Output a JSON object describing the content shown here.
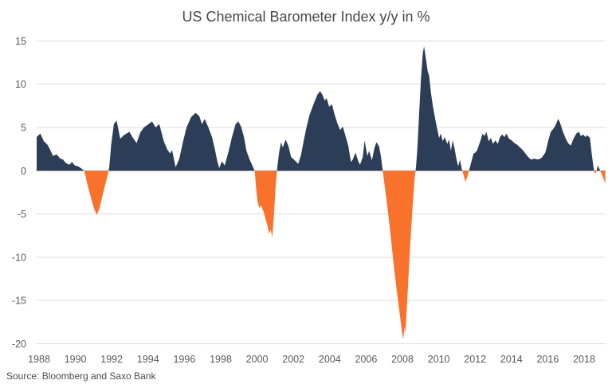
{
  "chart_data": {
    "type": "area",
    "title": "US Chemical Barometer Index y/y in %",
    "source": "Source: Bloomberg and Saxo Bank",
    "series_name": "US Chemical Barometer Index y/y %",
    "legend": "none",
    "grid": true,
    "x_axis": {
      "ticks": [
        1988,
        1990,
        1992,
        1994,
        1996,
        1998,
        2000,
        2002,
        2004,
        2006,
        2008,
        2010,
        2012,
        2014,
        2016,
        2018
      ],
      "range": [
        1988,
        2019.3
      ]
    },
    "y_axis": {
      "ticks": [
        15,
        10,
        5,
        0,
        -5,
        -10,
        -15,
        -20
      ],
      "range": [
        -20,
        15
      ],
      "unit": "%"
    },
    "colors": {
      "positive_area": "#2b3d57",
      "negative_area": "#f9722b",
      "gridline": "#dcdcdc",
      "zero_line": "#b3b3b3",
      "axis_text": "#595959",
      "title_text": "#474747"
    },
    "points": [
      [
        1988.0,
        3.9
      ],
      [
        1988.2,
        4.3
      ],
      [
        1988.4,
        3.4
      ],
      [
        1988.6,
        3.0
      ],
      [
        1988.75,
        2.4
      ],
      [
        1988.9,
        1.7
      ],
      [
        1989.1,
        1.9
      ],
      [
        1989.3,
        1.4
      ],
      [
        1989.45,
        1.3
      ],
      [
        1989.6,
        0.9
      ],
      [
        1989.8,
        0.7
      ],
      [
        1989.95,
        1.0
      ],
      [
        1990.1,
        0.6
      ],
      [
        1990.3,
        0.5
      ],
      [
        1990.5,
        0.2
      ],
      [
        1990.62,
        0.0
      ],
      [
        1990.8,
        -1.6
      ],
      [
        1991.0,
        -3.2
      ],
      [
        1991.15,
        -4.3
      ],
      [
        1991.3,
        -5.1
      ],
      [
        1991.45,
        -4.4
      ],
      [
        1991.6,
        -3.1
      ],
      [
        1991.75,
        -1.8
      ],
      [
        1991.9,
        -0.6
      ],
      [
        1992.0,
        0.5
      ],
      [
        1992.1,
        3.0
      ],
      [
        1992.25,
        5.4
      ],
      [
        1992.4,
        5.8
      ],
      [
        1992.6,
        3.7
      ],
      [
        1992.8,
        4.1
      ],
      [
        1993.1,
        4.5
      ],
      [
        1993.3,
        3.8
      ],
      [
        1993.5,
        3.2
      ],
      [
        1993.7,
        4.4
      ],
      [
        1993.9,
        5.0
      ],
      [
        1994.1,
        5.3
      ],
      [
        1994.35,
        5.7
      ],
      [
        1994.55,
        5.0
      ],
      [
        1994.75,
        5.4
      ],
      [
        1995.0,
        3.4
      ],
      [
        1995.2,
        2.4
      ],
      [
        1995.35,
        2.0
      ],
      [
        1995.45,
        2.4
      ],
      [
        1995.65,
        0.4
      ],
      [
        1995.85,
        1.4
      ],
      [
        1996.05,
        3.3
      ],
      [
        1996.25,
        5.0
      ],
      [
        1996.5,
        6.2
      ],
      [
        1996.75,
        6.7
      ],
      [
        1996.95,
        6.3
      ],
      [
        1997.1,
        5.4
      ],
      [
        1997.25,
        6.0
      ],
      [
        1997.45,
        5.0
      ],
      [
        1997.65,
        3.9
      ],
      [
        1997.8,
        2.6
      ],
      [
        1997.95,
        1.0
      ],
      [
        1998.05,
        0.3
      ],
      [
        1998.2,
        1.1
      ],
      [
        1998.35,
        0.6
      ],
      [
        1998.55,
        2.1
      ],
      [
        1998.75,
        3.9
      ],
      [
        1998.95,
        5.4
      ],
      [
        1999.1,
        5.7
      ],
      [
        1999.25,
        5.1
      ],
      [
        1999.4,
        4.0
      ],
      [
        1999.55,
        2.3
      ],
      [
        1999.7,
        1.4
      ],
      [
        1999.85,
        0.7
      ],
      [
        2000.0,
        0.0
      ],
      [
        2000.08,
        -2.0
      ],
      [
        2000.15,
        -3.4
      ],
      [
        2000.25,
        -4.3
      ],
      [
        2000.35,
        -4.0
      ],
      [
        2000.5,
        -4.8
      ],
      [
        2000.6,
        -5.6
      ],
      [
        2000.7,
        -6.3
      ],
      [
        2000.8,
        -7.3
      ],
      [
        2000.88,
        -6.8
      ],
      [
        2000.97,
        -7.7
      ],
      [
        2001.05,
        -5.5
      ],
      [
        2001.15,
        -2.0
      ],
      [
        2001.25,
        0.5
      ],
      [
        2001.35,
        2.2
      ],
      [
        2001.45,
        3.3
      ],
      [
        2001.55,
        2.7
      ],
      [
        2001.7,
        3.6
      ],
      [
        2001.85,
        2.9
      ],
      [
        2002.0,
        1.6
      ],
      [
        2002.2,
        1.2
      ],
      [
        2002.4,
        0.8
      ],
      [
        2002.55,
        1.8
      ],
      [
        2002.7,
        3.5
      ],
      [
        2002.85,
        5.0
      ],
      [
        2003.0,
        6.3
      ],
      [
        2003.15,
        7.2
      ],
      [
        2003.3,
        8.0
      ],
      [
        2003.45,
        8.8
      ],
      [
        2003.6,
        9.2
      ],
      [
        2003.75,
        8.7
      ],
      [
        2003.85,
        8.1
      ],
      [
        2003.95,
        8.4
      ],
      [
        2004.1,
        7.4
      ],
      [
        2004.25,
        7.7
      ],
      [
        2004.4,
        6.5
      ],
      [
        2004.55,
        5.5
      ],
      [
        2004.7,
        4.7
      ],
      [
        2004.85,
        5.1
      ],
      [
        2005.0,
        4.0
      ],
      [
        2005.15,
        2.9
      ],
      [
        2005.3,
        1.0
      ],
      [
        2005.4,
        1.3
      ],
      [
        2005.55,
        2.1
      ],
      [
        2005.7,
        1.1
      ],
      [
        2005.8,
        0.7
      ],
      [
        2005.95,
        1.6
      ],
      [
        2006.05,
        3.5
      ],
      [
        2006.2,
        1.7
      ],
      [
        2006.3,
        2.3
      ],
      [
        2006.45,
        1.2
      ],
      [
        2006.6,
        2.7
      ],
      [
        2006.7,
        3.3
      ],
      [
        2006.85,
        2.8
      ],
      [
        2006.95,
        1.6
      ],
      [
        2007.05,
        0.0
      ],
      [
        2007.2,
        -2.5
      ],
      [
        2007.35,
        -5.0
      ],
      [
        2007.5,
        -7.8
      ],
      [
        2007.65,
        -10.8
      ],
      [
        2007.8,
        -13.5
      ],
      [
        2007.95,
        -16.0
      ],
      [
        2008.1,
        -18.5
      ],
      [
        2008.18,
        -19.5
      ],
      [
        2008.25,
        -18.0
      ],
      [
        2008.3,
        -18.8
      ],
      [
        2008.42,
        -14.0
      ],
      [
        2008.55,
        -9.0
      ],
      [
        2008.68,
        -4.5
      ],
      [
        2008.8,
        -1.0
      ],
      [
        2008.88,
        0.5
      ],
      [
        2008.95,
        2.5
      ],
      [
        2009.05,
        6.5
      ],
      [
        2009.15,
        10.5
      ],
      [
        2009.25,
        13.5
      ],
      [
        2009.32,
        14.4
      ],
      [
        2009.42,
        13.0
      ],
      [
        2009.52,
        11.5
      ],
      [
        2009.6,
        11.0
      ],
      [
        2009.7,
        9.0
      ],
      [
        2009.82,
        7.3
      ],
      [
        2009.95,
        5.8
      ],
      [
        2010.05,
        4.8
      ],
      [
        2010.15,
        3.8
      ],
      [
        2010.25,
        4.3
      ],
      [
        2010.35,
        3.4
      ],
      [
        2010.45,
        3.9
      ],
      [
        2010.6,
        3.1
      ],
      [
        2010.7,
        3.6
      ],
      [
        2010.8,
        2.3
      ],
      [
        2010.9,
        3.5
      ],
      [
        2011.0,
        2.6
      ],
      [
        2011.1,
        1.4
      ],
      [
        2011.2,
        0.5
      ],
      [
        2011.3,
        1.3
      ],
      [
        2011.4,
        0.2
      ],
      [
        2011.5,
        -0.5
      ],
      [
        2011.6,
        -1.3
      ],
      [
        2011.72,
        -0.6
      ],
      [
        2011.82,
        0.2
      ],
      [
        2011.92,
        1.0
      ],
      [
        2012.05,
        2.0
      ],
      [
        2012.15,
        2.1
      ],
      [
        2012.25,
        2.4
      ],
      [
        2012.4,
        3.3
      ],
      [
        2012.55,
        4.3
      ],
      [
        2012.65,
        4.0
      ],
      [
        2012.75,
        4.5
      ],
      [
        2012.88,
        3.4
      ],
      [
        2013.0,
        3.8
      ],
      [
        2013.12,
        3.1
      ],
      [
        2013.25,
        3.5
      ],
      [
        2013.38,
        3.1
      ],
      [
        2013.5,
        3.9
      ],
      [
        2013.62,
        4.2
      ],
      [
        2013.75,
        3.9
      ],
      [
        2013.85,
        4.3
      ],
      [
        2014.0,
        3.7
      ],
      [
        2014.15,
        3.5
      ],
      [
        2014.3,
        3.2
      ],
      [
        2014.45,
        3.0
      ],
      [
        2014.6,
        2.7
      ],
      [
        2014.75,
        2.4
      ],
      [
        2014.9,
        2.0
      ],
      [
        2015.05,
        1.6
      ],
      [
        2015.2,
        1.3
      ],
      [
        2015.4,
        1.4
      ],
      [
        2015.6,
        1.3
      ],
      [
        2015.8,
        1.5
      ],
      [
        2016.0,
        2.1
      ],
      [
        2016.15,
        3.4
      ],
      [
        2016.3,
        4.5
      ],
      [
        2016.42,
        4.8
      ],
      [
        2016.55,
        5.2
      ],
      [
        2016.7,
        6.0
      ],
      [
        2016.8,
        5.6
      ],
      [
        2016.95,
        4.6
      ],
      [
        2017.1,
        3.8
      ],
      [
        2017.25,
        3.2
      ],
      [
        2017.4,
        2.9
      ],
      [
        2017.55,
        3.7
      ],
      [
        2017.7,
        4.3
      ],
      [
        2017.85,
        4.5
      ],
      [
        2017.95,
        4.0
      ],
      [
        2018.08,
        4.2
      ],
      [
        2018.2,
        3.9
      ],
      [
        2018.3,
        4.1
      ],
      [
        2018.45,
        3.8
      ],
      [
        2018.55,
        2.0
      ],
      [
        2018.65,
        0.4
      ],
      [
        2018.72,
        -0.3
      ],
      [
        2018.8,
        -0.2
      ],
      [
        2018.88,
        0.6
      ],
      [
        2018.95,
        0.3
      ],
      [
        2019.02,
        0.0
      ],
      [
        2019.1,
        -0.4
      ],
      [
        2019.2,
        -0.9
      ],
      [
        2019.3,
        -1.5
      ]
    ]
  }
}
